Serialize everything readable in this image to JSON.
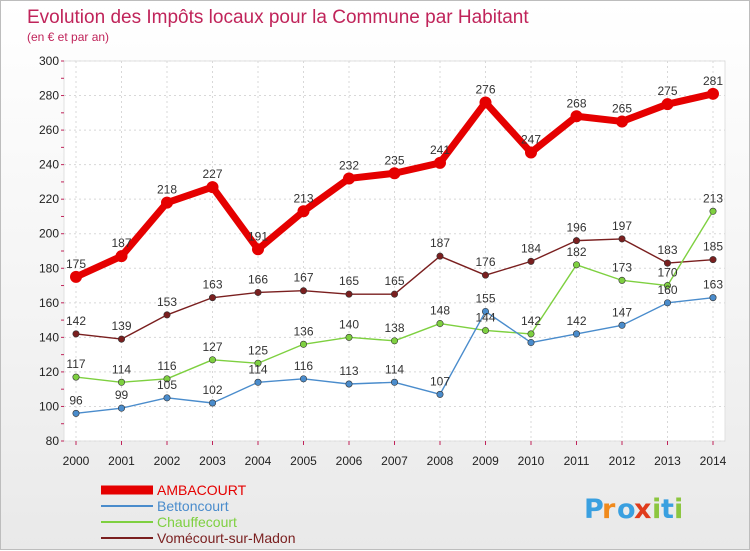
{
  "chart_data": {
    "type": "line",
    "title": "Evolution des Impôts locaux pour la Commune par Habitant",
    "subtitle": "(en € et par an)",
    "x": [
      "2000",
      "2001",
      "2002",
      "2003",
      "2004",
      "2005",
      "2006",
      "2007",
      "2008",
      "2009",
      "2010",
      "2011",
      "2012",
      "2013",
      "2014"
    ],
    "ylim": [
      80,
      300
    ],
    "yticks": [
      80,
      100,
      120,
      140,
      160,
      180,
      200,
      220,
      240,
      260,
      280,
      300
    ],
    "grid": true,
    "legend_position": "bottom-left",
    "series": [
      {
        "name": "AMBACOURT",
        "color": "#e50000",
        "values": [
          175,
          187,
          218,
          227,
          191,
          213,
          232,
          235,
          241,
          276,
          247,
          268,
          265,
          275,
          281
        ],
        "labels": [
          "175",
          "187",
          "218",
          "227",
          "191",
          "213",
          "232",
          "235",
          "241",
          "276",
          "247",
          "268",
          "265",
          "275",
          "281"
        ]
      },
      {
        "name": "Bettoncourt",
        "color": "#4a8ccc",
        "values": [
          96,
          99,
          105,
          102,
          114,
          116,
          113,
          114,
          107,
          155,
          137,
          142,
          147,
          160,
          163
        ],
        "labels": [
          "96",
          "99",
          "105",
          "102",
          "114",
          "116",
          "113",
          "114",
          "107",
          "155",
          "",
          "142",
          "147",
          "160",
          "163"
        ]
      },
      {
        "name": "Chauffecourt",
        "color": "#7ed040",
        "values": [
          117,
          114,
          116,
          127,
          125,
          136,
          140,
          138,
          148,
          144,
          142,
          182,
          173,
          170,
          213
        ],
        "labels": [
          "117",
          "114",
          "116",
          "127",
          "125",
          "136",
          "140",
          "138",
          "148",
          "144",
          "142",
          "182",
          "173",
          "170",
          "213"
        ]
      },
      {
        "name": "Vomécourt-sur-Madon",
        "color": "#7a1f1f",
        "values": [
          142,
          139,
          153,
          163,
          166,
          167,
          165,
          165,
          187,
          176,
          184,
          196,
          197,
          183,
          185
        ],
        "labels": [
          "142",
          "139",
          "153",
          "163",
          "166",
          "167",
          "165",
          "165",
          "187",
          "176",
          "184",
          "196",
          "197",
          "183",
          "185"
        ]
      }
    ]
  },
  "logo": {
    "letters": [
      "P",
      "r",
      "o",
      "x",
      "i",
      "t",
      "i"
    ],
    "colors": [
      "#3aa0e0",
      "#f08a1c",
      "#3aa0e0",
      "#e03c1c",
      "#8cc63f",
      "#3aa0e0",
      "#8cc63f"
    ]
  }
}
